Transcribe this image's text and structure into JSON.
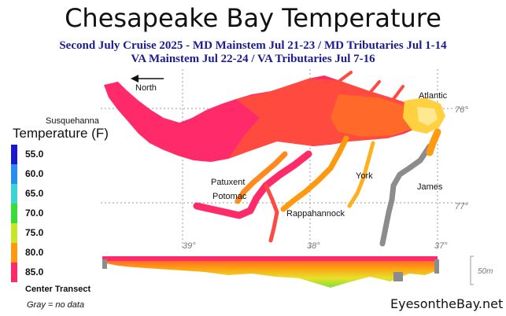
{
  "title": "Chesapeake Bay Temperature",
  "subtitle_line1": "Second July Cruise 2025 - MD Mainstem Jul 21-23 / MD Tributaries Jul 1-14",
  "subtitle_line2": "VA Mainstem Jul 22-24 /  VA Tributaries Jul 7-16",
  "legend": {
    "title": "Temperature (F)",
    "items": [
      {
        "label": "55.0",
        "color": "#1a1ac8"
      },
      {
        "label": "60.0",
        "color": "#2a8ef0"
      },
      {
        "label": "65.0",
        "color": "#3ad4d4"
      },
      {
        "label": "70.0",
        "color": "#3adc3a"
      },
      {
        "label": "75.0",
        "color": "#c8e628"
      },
      {
        "label": "80.0",
        "color": "#ff9a10"
      },
      {
        "label": "85.0",
        "color": "#ff2a6a"
      }
    ]
  },
  "map_labels": {
    "north": "North",
    "susquehanna": "Susquehanna",
    "atlantic": "Atlantic",
    "patuxent": "Patuxent",
    "potomac": "Potomac",
    "york": "York",
    "james": "James",
    "rappahannock": "Rappahannock"
  },
  "grid_labels": {
    "lon76": "76°",
    "lon77": "77°",
    "lat39": "39°",
    "lat38": "38°",
    "lat37": "37°"
  },
  "transect": {
    "label": "Center Transect",
    "no_data_note": "Gray = no data",
    "depth_scale": "50m"
  },
  "credit": "EyesontheBay.net",
  "colors": {
    "hot": "#ff2a6a",
    "warm": "#ff6a2a",
    "orange": "#ff9a10",
    "yellow": "#ffd040",
    "green": "#7ee03a",
    "no_data": "#8c8c8c",
    "grid": "#999999"
  }
}
